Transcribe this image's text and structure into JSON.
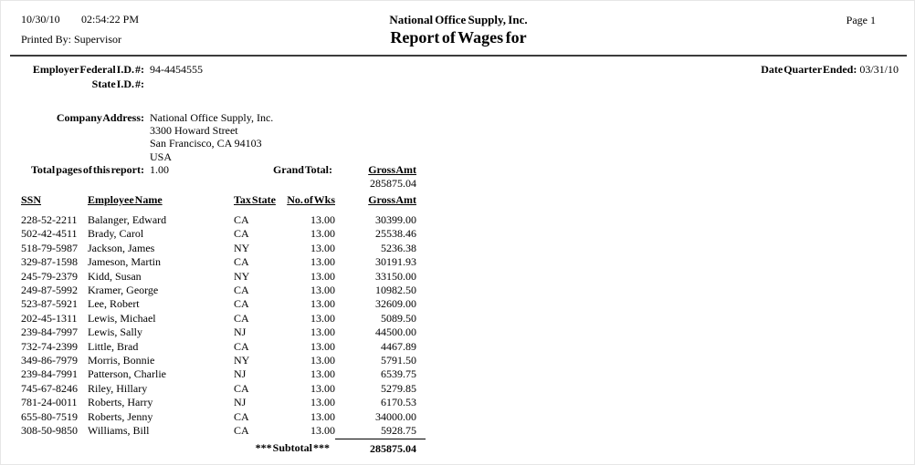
{
  "header": {
    "print_date": "10/30/10",
    "print_time": "02:54:22 PM",
    "printed_by": "Printed By: Supervisor",
    "company_name": "National Office Supply, Inc.",
    "report_title": "Report of Wages for",
    "page_label": "Page 1"
  },
  "info": {
    "federal_id_label": "Employer Federal I.D. #:",
    "federal_id": "94-4454555",
    "state_id_label": "State I.D. #:",
    "state_id": "",
    "quarter_label": "Date Quarter Ended:",
    "quarter_date": "03/31/10",
    "company_address_label": "Company Address:",
    "address_line1": "National Office Supply, Inc.",
    "address_line2": "3300 Howard Street",
    "address_line3": "San Francisco, CA 94103",
    "address_line4": "USA",
    "total_pages_label": "Total pages of this report:",
    "total_pages": "1.00",
    "grand_total_label": "Grand Total:",
    "grand_total_column": "Gross Amt",
    "grand_total_value": "285875.04"
  },
  "table": {
    "columns": [
      "SSN",
      "Employee Name",
      "Tax State",
      "No. of Wks",
      "Gross Amt"
    ],
    "rows": [
      [
        "228-52-2211",
        "Balanger, Edward",
        "CA",
        "13.00",
        "30399.00"
      ],
      [
        "502-42-4511",
        "Brady, Carol",
        "CA",
        "13.00",
        "25538.46"
      ],
      [
        "518-79-5987",
        "Jackson, James",
        "NY",
        "13.00",
        "5236.38"
      ],
      [
        "329-87-1598",
        "Jameson, Martin",
        "CA",
        "13.00",
        "30191.93"
      ],
      [
        "245-79-2379",
        "Kidd, Susan",
        "NY",
        "13.00",
        "33150.00"
      ],
      [
        "249-87-5992",
        "Kramer, George",
        "CA",
        "13.00",
        "10982.50"
      ],
      [
        "523-87-5921",
        "Lee, Robert",
        "CA",
        "13.00",
        "32609.00"
      ],
      [
        "202-45-1311",
        "Lewis, Michael",
        "CA",
        "13.00",
        "5089.50"
      ],
      [
        "239-84-7997",
        "Lewis, Sally",
        "NJ",
        "13.00",
        "44500.00"
      ],
      [
        "732-74-2399",
        "Little, Brad",
        "CA",
        "13.00",
        "4467.89"
      ],
      [
        "349-86-7979",
        "Morris, Bonnie",
        "NY",
        "13.00",
        "5791.50"
      ],
      [
        "239-84-7991",
        "Patterson, Charlie",
        "NJ",
        "13.00",
        "6539.75"
      ],
      [
        "745-67-8246",
        "Riley, Hillary",
        "CA",
        "13.00",
        "5279.85"
      ],
      [
        "781-24-0011",
        "Roberts, Harry",
        "NJ",
        "13.00",
        "6170.53"
      ],
      [
        "655-80-7519",
        "Roberts, Jenny",
        "CA",
        "13.00",
        "34000.00"
      ],
      [
        "308-50-9850",
        "Williams, Bill",
        "CA",
        "13.00",
        "5928.75"
      ]
    ],
    "subtotal_label": "*** Subtotal ***",
    "subtotal_value": "285875.04"
  }
}
